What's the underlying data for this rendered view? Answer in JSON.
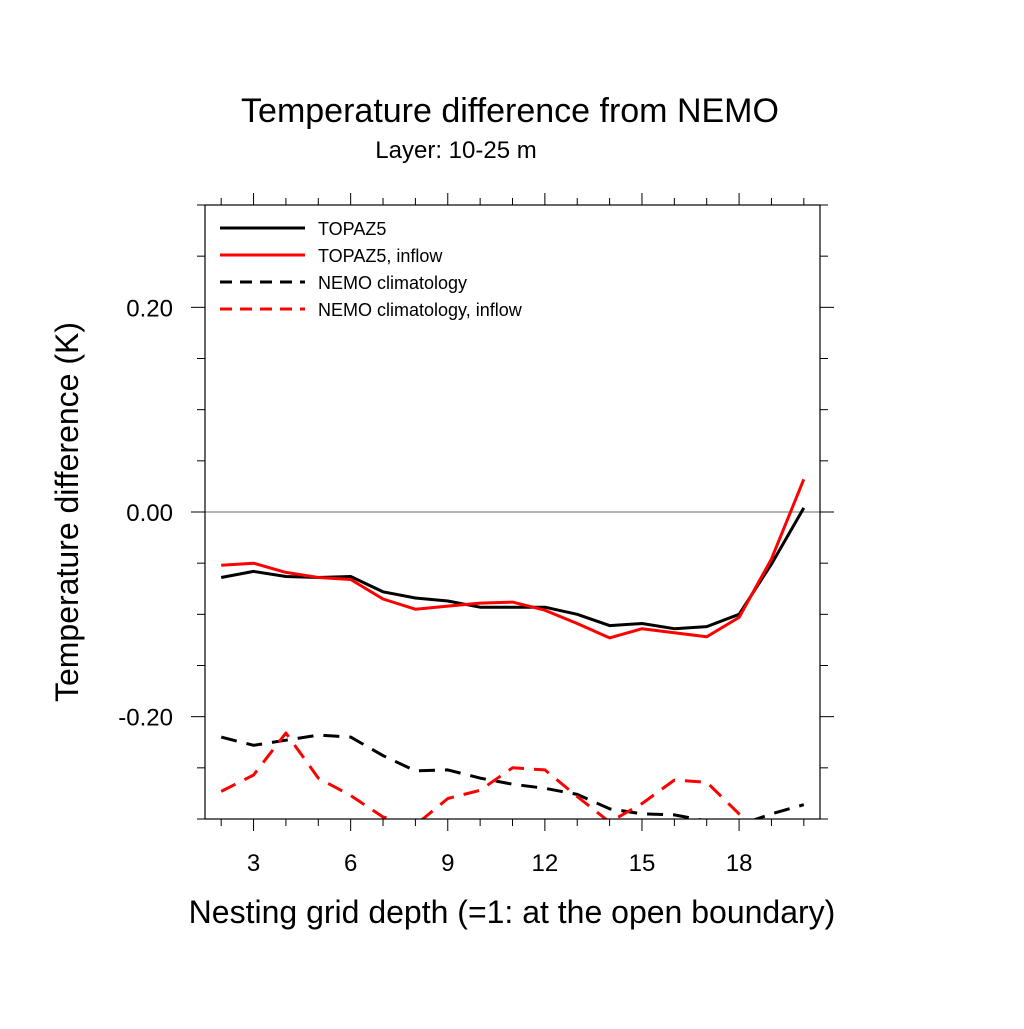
{
  "chart_data": {
    "type": "line",
    "title": "Temperature difference from NEMO",
    "subtitle": "Layer: 10-25 m",
    "xlabel": "Nesting grid depth (=1: at the open boundary)",
    "ylabel": "Temperature difference (K)",
    "xlim": [
      1.5,
      20.5
    ],
    "ylim": [
      -0.3,
      0.3
    ],
    "xticks": [
      3,
      6,
      9,
      12,
      15,
      18
    ],
    "xtick_labels": [
      "3",
      "6",
      "9",
      "12",
      "15",
      "18"
    ],
    "yticks": [
      0.2,
      0.0,
      -0.2
    ],
    "ytick_labels": [
      "0.20",
      "0.00",
      "-0.20"
    ],
    "x_minor_step": 1,
    "y_minor_step": 0.05,
    "reference_line": 0.0,
    "legend_position": "top-left",
    "x": [
      2,
      3,
      4,
      5,
      6,
      7,
      8,
      9,
      10,
      11,
      12,
      13,
      14,
      15,
      16,
      17,
      18,
      19,
      20
    ],
    "series": [
      {
        "name": "TOPAZ5",
        "color": "#000000",
        "dash": "solid",
        "values": [
          -0.064,
          -0.058,
          -0.063,
          -0.064,
          -0.063,
          -0.078,
          -0.084,
          -0.087,
          -0.093,
          -0.093,
          -0.093,
          -0.1,
          -0.111,
          -0.109,
          -0.114,
          -0.112,
          -0.1,
          -0.051,
          0.004
        ]
      },
      {
        "name": "TOPAZ5, inflow",
        "color": "#ff0000",
        "dash": "solid",
        "values": [
          -0.052,
          -0.05,
          -0.059,
          -0.064,
          -0.066,
          -0.085,
          -0.095,
          -0.092,
          -0.089,
          -0.088,
          -0.096,
          -0.109,
          -0.123,
          -0.114,
          -0.118,
          -0.122,
          -0.103,
          -0.046,
          0.032
        ]
      },
      {
        "name": "NEMO climatology",
        "color": "#000000",
        "dash": "dashed",
        "values": [
          -0.22,
          -0.228,
          -0.223,
          -0.218,
          -0.22,
          -0.238,
          -0.253,
          -0.252,
          -0.26,
          -0.266,
          -0.27,
          -0.276,
          -0.29,
          -0.295,
          -0.296,
          -0.302,
          -0.306,
          -0.295,
          -0.286
        ]
      },
      {
        "name": "NEMO climatology, inflow",
        "color": "#ff0000",
        "dash": "dashed",
        "values": [
          -0.273,
          -0.257,
          -0.216,
          -0.26,
          -0.277,
          -0.298,
          -0.306,
          -0.28,
          -0.272,
          -0.25,
          -0.252,
          -0.278,
          -0.303,
          -0.285,
          -0.262,
          -0.264,
          -0.295,
          -0.316,
          -0.31
        ]
      }
    ]
  }
}
